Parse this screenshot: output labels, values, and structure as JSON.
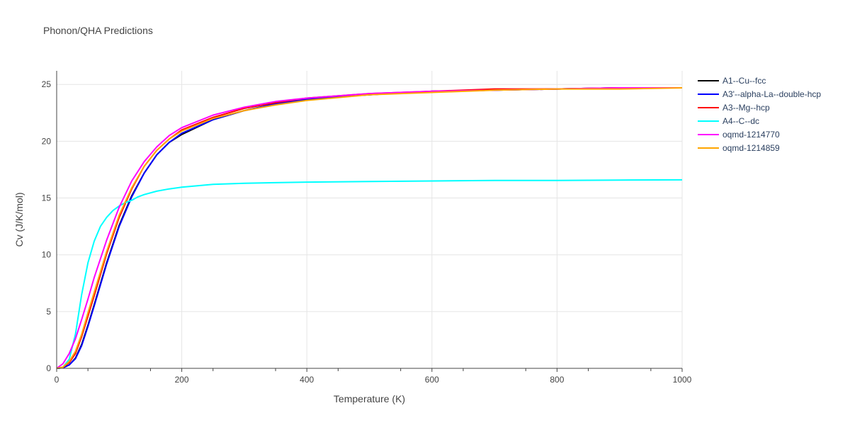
{
  "title": "Phonon/QHA Predictions",
  "chart_data": {
    "type": "line",
    "xlabel": "Temperature (K)",
    "ylabel": "Cv (J/K/mol)",
    "xlim": [
      0,
      1000
    ],
    "ylim": [
      0,
      26.2
    ],
    "xticks": [
      0,
      200,
      400,
      600,
      800,
      1000
    ],
    "yticks": [
      0,
      5,
      10,
      15,
      20,
      25
    ],
    "grid": true,
    "legend_position": "right",
    "series": [
      {
        "name": "A1--Cu--fcc",
        "color": "#000000",
        "x": [
          0,
          10,
          20,
          30,
          40,
          50,
          60,
          80,
          100,
          120,
          140,
          160,
          180,
          200,
          250,
          300,
          350,
          400,
          500,
          600,
          700,
          800,
          900,
          1000
        ],
        "y": [
          0,
          0.05,
          0.3,
          0.9,
          2.1,
          3.8,
          5.6,
          9.3,
          12.6,
          15.2,
          17.2,
          18.8,
          19.9,
          20.6,
          21.9,
          22.7,
          23.3,
          23.7,
          24.1,
          24.4,
          24.5,
          24.6,
          24.7,
          24.7
        ]
      },
      {
        "name": "A3'--alpha-La--double-hcp",
        "color": "#0000ff",
        "x": [
          0,
          10,
          20,
          30,
          40,
          50,
          60,
          80,
          100,
          120,
          140,
          160,
          180,
          200,
          250,
          300,
          350,
          400,
          500,
          600,
          700,
          800,
          900,
          1000
        ],
        "y": [
          0,
          0.05,
          0.3,
          0.85,
          2.0,
          3.7,
          5.5,
          9.2,
          12.5,
          15.1,
          17.2,
          18.8,
          19.9,
          20.7,
          21.9,
          22.7,
          23.3,
          23.7,
          24.1,
          24.4,
          24.5,
          24.6,
          24.7,
          24.7
        ]
      },
      {
        "name": "A3--Mg--hcp",
        "color": "#ff0000",
        "x": [
          0,
          10,
          20,
          30,
          40,
          50,
          60,
          80,
          100,
          120,
          140,
          160,
          180,
          200,
          250,
          300,
          350,
          400,
          500,
          600,
          700,
          800,
          900,
          1000
        ],
        "y": [
          0,
          0.1,
          0.5,
          1.3,
          2.8,
          4.6,
          6.4,
          10.1,
          13.3,
          15.8,
          17.8,
          19.2,
          20.2,
          21.0,
          22.1,
          22.9,
          23.4,
          23.8,
          24.2,
          24.4,
          24.6,
          24.6,
          24.7,
          24.7
        ]
      },
      {
        "name": "A4--C--dc",
        "color": "#00ffff",
        "x": [
          0,
          10,
          20,
          30,
          40,
          50,
          60,
          70,
          80,
          90,
          100,
          110,
          120,
          130,
          140,
          160,
          180,
          200,
          250,
          300,
          400,
          500,
          600,
          700,
          800,
          900,
          1000
        ],
        "y": [
          0,
          0.1,
          0.8,
          3.0,
          6.5,
          9.3,
          11.2,
          12.5,
          13.3,
          13.9,
          14.3,
          14.6,
          14.8,
          15.1,
          15.3,
          15.6,
          15.8,
          15.95,
          16.2,
          16.3,
          16.4,
          16.45,
          16.5,
          16.55,
          16.55,
          16.58,
          16.6
        ]
      },
      {
        "name": "oqmd-1214770",
        "color": "#ff00ff",
        "x": [
          0,
          10,
          20,
          30,
          40,
          50,
          60,
          80,
          100,
          120,
          140,
          160,
          180,
          200,
          250,
          300,
          350,
          400,
          500,
          600,
          700,
          800,
          900,
          1000
        ],
        "y": [
          0,
          0.4,
          1.3,
          2.6,
          4.3,
          6.1,
          8.0,
          11.3,
          14.2,
          16.5,
          18.2,
          19.5,
          20.5,
          21.2,
          22.3,
          23.0,
          23.5,
          23.8,
          24.2,
          24.4,
          24.5,
          24.6,
          24.7,
          24.7
        ]
      },
      {
        "name": "oqmd-1214859",
        "color": "#ffa500",
        "x": [
          0,
          10,
          20,
          30,
          40,
          50,
          60,
          80,
          100,
          120,
          140,
          160,
          180,
          200,
          250,
          300,
          350,
          400,
          500,
          600,
          700,
          800,
          900,
          1000
        ],
        "y": [
          0,
          0.1,
          0.6,
          1.5,
          3.0,
          4.9,
          6.7,
          10.3,
          13.5,
          15.9,
          17.8,
          19.2,
          20.2,
          20.9,
          22.0,
          22.7,
          23.2,
          23.6,
          24.1,
          24.3,
          24.5,
          24.6,
          24.6,
          24.7
        ]
      }
    ]
  }
}
